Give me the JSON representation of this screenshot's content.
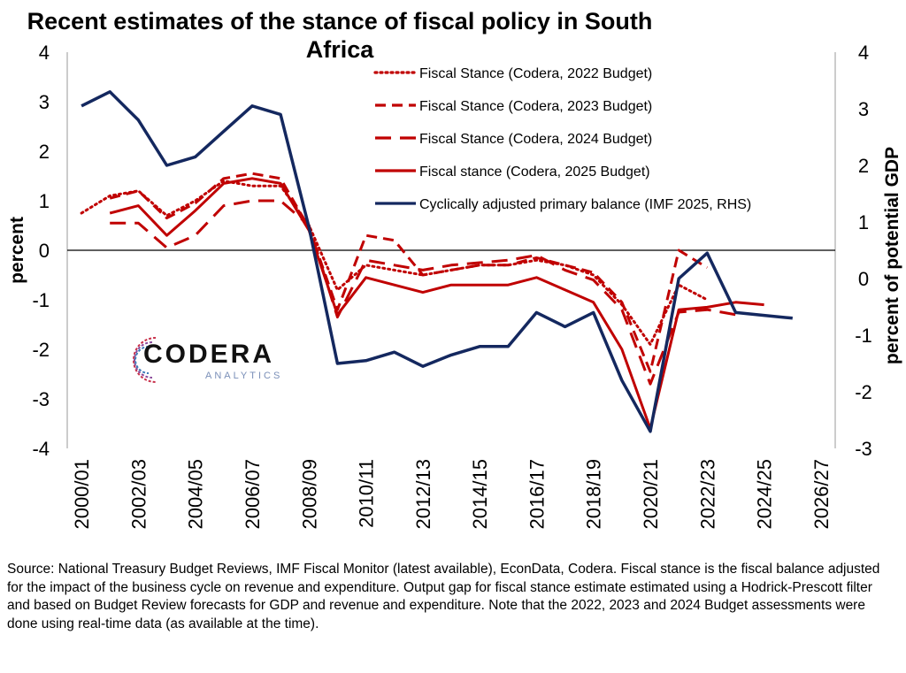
{
  "title": "Recent estimates of the stance of fiscal policy in South Africa",
  "source_note": "Source: National Treasury Budget Reviews, IMF Fiscal Monitor (latest available), EconData, Codera. Fiscal stance is the fiscal balance adjusted for the impact of the business cycle on revenue and expenditure. Output gap for fiscal stance estimate estimated using a Hodrick-Prescott filter and based on Budget Review forecasts for GDP and revenue and expenditure. Note that the 2022, 2023 and 2024 Budget assessments were done using real-time data (as available at the time).",
  "logo": {
    "word": "CODERA",
    "sub": "ANALYTICS"
  },
  "colors": {
    "red": "#c00000",
    "navy": "#14285f",
    "axis": "#000000"
  },
  "chart_data": {
    "type": "line",
    "title": "Recent estimates of the stance of fiscal policy in South Africa",
    "ylabel": "percent",
    "y2label": "percent of potential GDP",
    "ylim": [
      -4,
      4
    ],
    "y2lim": [
      -3,
      4
    ],
    "yticks": [
      4,
      3,
      2,
      1,
      0,
      -1,
      -2,
      -3,
      -4
    ],
    "y2ticks": [
      4,
      3,
      2,
      1,
      0,
      -1,
      -2,
      -3
    ],
    "tick_labels": [
      "2000/01",
      "2002/03",
      "2004/05",
      "2006/07",
      "2008/09",
      "2010/11",
      "2012/13",
      "2014/15",
      "2016/17",
      "2018/19",
      "2020/21",
      "2022/23",
      "2024/25",
      "2026/27"
    ],
    "categories": [
      "2000/01",
      "2001/02",
      "2002/03",
      "2003/04",
      "2004/05",
      "2005/06",
      "2006/07",
      "2007/08",
      "2008/09",
      "2009/10",
      "2010/11",
      "2011/12",
      "2012/13",
      "2013/14",
      "2014/15",
      "2015/16",
      "2016/17",
      "2017/18",
      "2018/19",
      "2019/20",
      "2020/21",
      "2021/22",
      "2022/23",
      "2023/24",
      "2024/25",
      "2025/26",
      "2026/27"
    ],
    "legend_position": "top-right",
    "series": [
      {
        "name": "Fiscal Stance (Codera, 2022 Budget)",
        "style": "dotted",
        "color": "#c00000",
        "axis": "left",
        "values": [
          0.75,
          1.1,
          1.2,
          0.7,
          1.0,
          1.4,
          1.3,
          1.3,
          0.5,
          -0.8,
          -0.3,
          -0.4,
          -0.5,
          -0.4,
          -0.3,
          -0.3,
          -0.2,
          -0.3,
          -0.5,
          -1.1,
          -1.9,
          -0.7,
          -1.0,
          null,
          null,
          null,
          null
        ]
      },
      {
        "name": "Fiscal Stance (Codera, 2023 Budget)",
        "style": "dashed",
        "color": "#c00000",
        "axis": "left",
        "values": [
          null,
          1.05,
          1.2,
          0.65,
          0.95,
          1.45,
          1.55,
          1.45,
          0.45,
          -1.2,
          0.3,
          0.2,
          -0.5,
          -0.4,
          -0.3,
          -0.3,
          -0.15,
          -0.3,
          -0.45,
          -1.05,
          -2.45,
          0.0,
          -0.35,
          null,
          null,
          null,
          null
        ]
      },
      {
        "name": "Fiscal Stance (Codera, 2024 Budget)",
        "style": "longdash",
        "color": "#c00000",
        "axis": "left",
        "values": [
          null,
          0.55,
          0.55,
          0.05,
          0.3,
          0.9,
          1.0,
          1.0,
          0.5,
          -1.35,
          -0.2,
          -0.3,
          -0.4,
          -0.3,
          -0.25,
          -0.2,
          -0.1,
          -0.4,
          -0.6,
          -1.2,
          -2.7,
          -1.25,
          -1.2,
          -1.3,
          null,
          null,
          null
        ]
      },
      {
        "name": "Fiscal stance (Codera, 2025 Budget)",
        "style": "solid",
        "color": "#c00000",
        "axis": "left",
        "values": [
          null,
          0.75,
          0.9,
          0.3,
          0.8,
          1.35,
          1.45,
          1.35,
          0.4,
          -1.3,
          -0.55,
          -0.7,
          -0.85,
          -0.7,
          -0.7,
          -0.7,
          -0.55,
          -0.8,
          -1.05,
          -2.0,
          -3.6,
          -1.2,
          -1.15,
          -1.05,
          -1.1,
          null,
          null
        ]
      },
      {
        "name": "Cyclically adjusted primary balance (IMF 2025, RHS)",
        "style": "solid",
        "color": "#14285f",
        "axis": "right",
        "values": [
          3.05,
          3.3,
          2.8,
          2.0,
          2.15,
          2.6,
          3.05,
          2.9,
          0.9,
          -1.5,
          -1.45,
          -1.3,
          -1.55,
          -1.35,
          -1.2,
          -1.2,
          -0.6,
          -0.85,
          -0.6,
          -1.8,
          -2.7,
          0.0,
          0.45,
          -0.6,
          -0.65,
          -0.7,
          null
        ]
      }
    ]
  }
}
